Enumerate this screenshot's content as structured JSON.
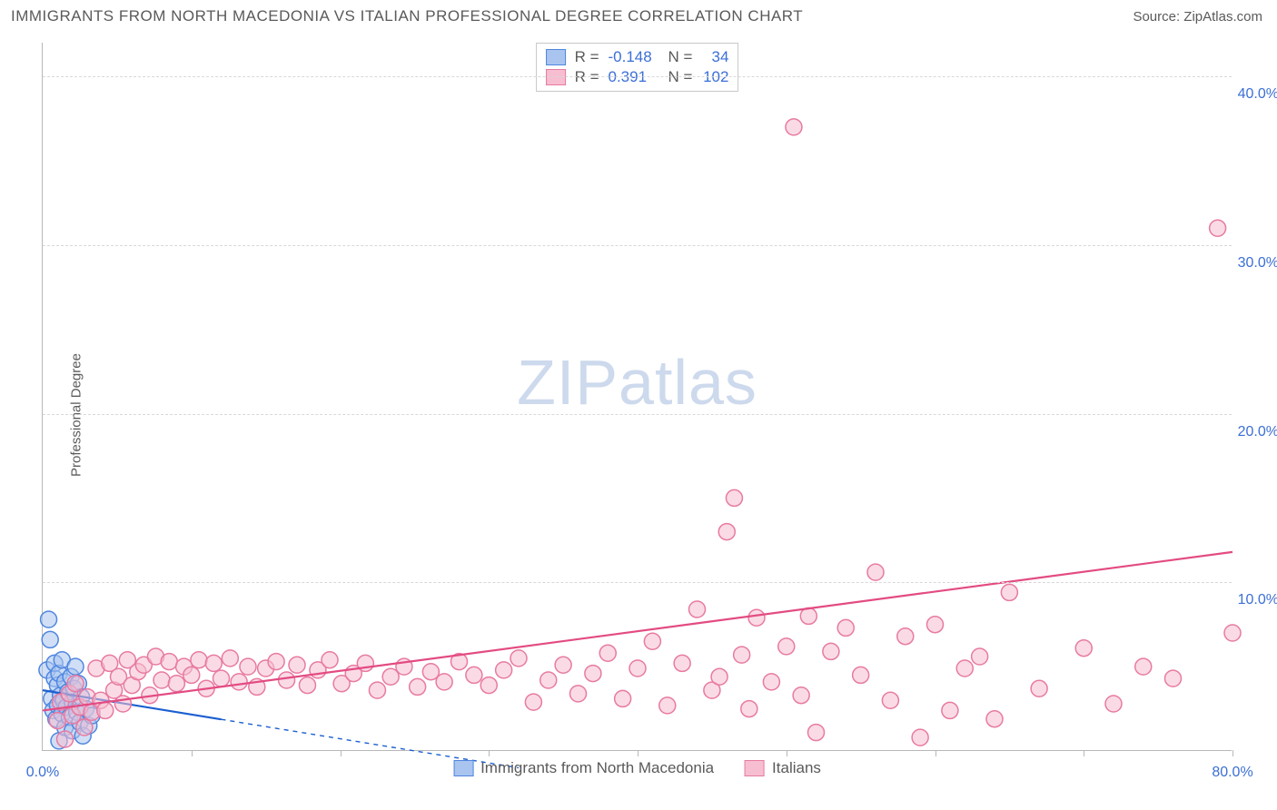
{
  "header": {
    "title": "IMMIGRANTS FROM NORTH MACEDONIA VS ITALIAN PROFESSIONAL DEGREE CORRELATION CHART",
    "source": "Source: ZipAtlas.com"
  },
  "watermark": {
    "part1": "ZIP",
    "part2": "atlas"
  },
  "chart": {
    "type": "scatter",
    "y_axis_label": "Professional Degree",
    "background_color": "#ffffff",
    "grid_color": "#d8d8d8",
    "axis_color": "#b8b8b8",
    "tick_label_color": "#3b6fd6",
    "text_color": "#5a5a5a",
    "tick_fontsize": 16,
    "title_fontsize": 17,
    "xlim": [
      0,
      80
    ],
    "ylim": [
      0,
      42
    ],
    "x_ticks_major": [
      10,
      20,
      30,
      40,
      50,
      60,
      70,
      80
    ],
    "x_ticks_labeled": [
      0,
      80
    ],
    "x_tick_format": "{v}.0%",
    "y_ticks": [
      10,
      20,
      30,
      40
    ],
    "y_tick_format": "{v}.0%",
    "marker_radius": 9,
    "marker_stroke_width": 1.5,
    "line_width": 2.2,
    "series": [
      {
        "id": "macedonia",
        "label": "Immigrants from North Macedonia",
        "R": "-0.148",
        "N": "34",
        "fill": "#a9c4ef",
        "fill_opacity": 0.55,
        "stroke": "#4f86e0",
        "line_color": "#1b5fd0",
        "line_dash_after_x": 12,
        "trend": {
          "x1": 0,
          "y1": 3.6,
          "x2": 32,
          "y2": -1.0
        },
        "points": [
          [
            0.3,
            4.8
          ],
          [
            0.4,
            7.8
          ],
          [
            0.5,
            6.6
          ],
          [
            0.6,
            3.1
          ],
          [
            0.7,
            2.4
          ],
          [
            0.8,
            4.3
          ],
          [
            0.8,
            5.2
          ],
          [
            0.9,
            1.9
          ],
          [
            1.0,
            2.7
          ],
          [
            1.0,
            3.9
          ],
          [
            1.1,
            0.6
          ],
          [
            1.1,
            4.6
          ],
          [
            1.2,
            3.3
          ],
          [
            1.3,
            5.4
          ],
          [
            1.3,
            2.2
          ],
          [
            1.4,
            3.0
          ],
          [
            1.5,
            1.4
          ],
          [
            1.5,
            4.1
          ],
          [
            1.6,
            2.6
          ],
          [
            1.7,
            3.5
          ],
          [
            1.8,
            2.0
          ],
          [
            1.9,
            4.4
          ],
          [
            2.0,
            1.2
          ],
          [
            2.0,
            2.9
          ],
          [
            2.1,
            3.7
          ],
          [
            2.2,
            5.0
          ],
          [
            2.3,
            2.3
          ],
          [
            2.4,
            4.0
          ],
          [
            2.5,
            1.7
          ],
          [
            2.6,
            3.2
          ],
          [
            2.7,
            0.9
          ],
          [
            2.9,
            2.5
          ],
          [
            3.1,
            1.5
          ],
          [
            3.3,
            2.1
          ]
        ]
      },
      {
        "id": "italians",
        "label": "Italians",
        "R": "0.391",
        "N": "102",
        "fill": "#f6bed0",
        "fill_opacity": 0.55,
        "stroke": "#e87aa2",
        "line_color": "#e34b82",
        "trend": {
          "x1": 0,
          "y1": 2.4,
          "x2": 80,
          "y2": 11.8
        },
        "points": [
          [
            1.0,
            1.8
          ],
          [
            1.2,
            2.9
          ],
          [
            1.5,
            0.7
          ],
          [
            1.8,
            3.4
          ],
          [
            2.0,
            2.1
          ],
          [
            2.2,
            4.0
          ],
          [
            2.5,
            2.6
          ],
          [
            2.8,
            1.4
          ],
          [
            3.0,
            3.2
          ],
          [
            3.3,
            2.3
          ],
          [
            3.6,
            4.9
          ],
          [
            3.9,
            3.0
          ],
          [
            4.2,
            2.4
          ],
          [
            4.5,
            5.2
          ],
          [
            4.8,
            3.6
          ],
          [
            5.1,
            4.4
          ],
          [
            5.4,
            2.8
          ],
          [
            5.7,
            5.4
          ],
          [
            6.0,
            3.9
          ],
          [
            6.4,
            4.7
          ],
          [
            6.8,
            5.1
          ],
          [
            7.2,
            3.3
          ],
          [
            7.6,
            5.6
          ],
          [
            8.0,
            4.2
          ],
          [
            8.5,
            5.3
          ],
          [
            9.0,
            4.0
          ],
          [
            9.5,
            5.0
          ],
          [
            10.0,
            4.5
          ],
          [
            10.5,
            5.4
          ],
          [
            11.0,
            3.7
          ],
          [
            11.5,
            5.2
          ],
          [
            12.0,
            4.3
          ],
          [
            12.6,
            5.5
          ],
          [
            13.2,
            4.1
          ],
          [
            13.8,
            5.0
          ],
          [
            14.4,
            3.8
          ],
          [
            15.0,
            4.9
          ],
          [
            15.7,
            5.3
          ],
          [
            16.4,
            4.2
          ],
          [
            17.1,
            5.1
          ],
          [
            17.8,
            3.9
          ],
          [
            18.5,
            4.8
          ],
          [
            19.3,
            5.4
          ],
          [
            20.1,
            4.0
          ],
          [
            20.9,
            4.6
          ],
          [
            21.7,
            5.2
          ],
          [
            22.5,
            3.6
          ],
          [
            23.4,
            4.4
          ],
          [
            24.3,
            5.0
          ],
          [
            25.2,
            3.8
          ],
          [
            26.1,
            4.7
          ],
          [
            27.0,
            4.1
          ],
          [
            28.0,
            5.3
          ],
          [
            29.0,
            4.5
          ],
          [
            30.0,
            3.9
          ],
          [
            31.0,
            4.8
          ],
          [
            32.0,
            5.5
          ],
          [
            33.0,
            2.9
          ],
          [
            34.0,
            4.2
          ],
          [
            35.0,
            5.1
          ],
          [
            36.0,
            3.4
          ],
          [
            37.0,
            4.6
          ],
          [
            38.0,
            5.8
          ],
          [
            39.0,
            3.1
          ],
          [
            40.0,
            4.9
          ],
          [
            41.0,
            6.5
          ],
          [
            42.0,
            2.7
          ],
          [
            43.0,
            5.2
          ],
          [
            44.0,
            8.4
          ],
          [
            45.0,
            3.6
          ],
          [
            45.5,
            4.4
          ],
          [
            46.0,
            13.0
          ],
          [
            46.5,
            15.0
          ],
          [
            47.0,
            5.7
          ],
          [
            47.5,
            2.5
          ],
          [
            48.0,
            7.9
          ],
          [
            49.0,
            4.1
          ],
          [
            50.0,
            6.2
          ],
          [
            50.5,
            37.0
          ],
          [
            51.0,
            3.3
          ],
          [
            51.5,
            8.0
          ],
          [
            52.0,
            1.1
          ],
          [
            53.0,
            5.9
          ],
          [
            54.0,
            7.3
          ],
          [
            55.0,
            4.5
          ],
          [
            56.0,
            10.6
          ],
          [
            57.0,
            3.0
          ],
          [
            58.0,
            6.8
          ],
          [
            59.0,
            0.8
          ],
          [
            60.0,
            7.5
          ],
          [
            61.0,
            2.4
          ],
          [
            62.0,
            4.9
          ],
          [
            63.0,
            5.6
          ],
          [
            64.0,
            1.9
          ],
          [
            65.0,
            9.4
          ],
          [
            67.0,
            3.7
          ],
          [
            70.0,
            6.1
          ],
          [
            72.0,
            2.8
          ],
          [
            74.0,
            5.0
          ],
          [
            76.0,
            4.3
          ],
          [
            79.0,
            31.0
          ],
          [
            80.0,
            7.0
          ]
        ]
      }
    ],
    "legend_top": {
      "R_label": "R =",
      "N_label": "N ="
    },
    "legend_bottom_order": [
      "macedonia",
      "italians"
    ]
  }
}
